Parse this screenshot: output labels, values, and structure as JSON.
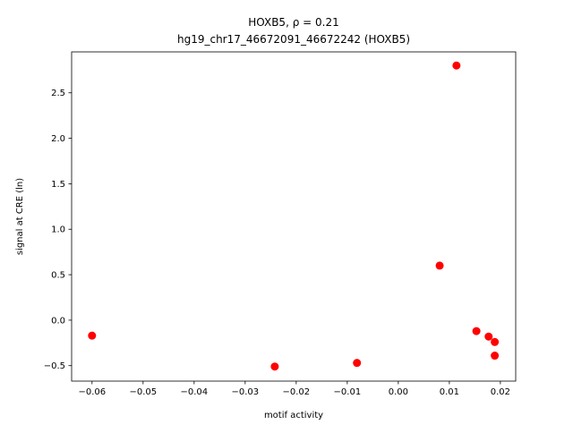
{
  "chart_data": {
    "type": "scatter",
    "title": "HOXB5, ρ = 0.21",
    "subtitle": "hg19_chr17_46672091_46672242 (HOXB5)",
    "x_label": "motif activity",
    "y_label": "signal at CRE (ln)",
    "color": "#ff0000",
    "x": [
      -0.06,
      -0.0242,
      -0.0081,
      0.0081,
      0.0114,
      0.0153,
      0.0177,
      0.0189,
      0.0189
    ],
    "values": [
      -0.17,
      -0.51,
      -0.47,
      0.6,
      2.8,
      -0.12,
      -0.18,
      -0.24,
      -0.39
    ],
    "xlim": [
      -0.064,
      0.023
    ],
    "ylim": [
      -0.67,
      2.95
    ],
    "xticks": [
      {
        "value": -0.06,
        "label": "−0.06"
      },
      {
        "value": -0.05,
        "label": "−0.05"
      },
      {
        "value": -0.04,
        "label": "−0.04"
      },
      {
        "value": -0.03,
        "label": "−0.03"
      },
      {
        "value": -0.02,
        "label": "−0.02"
      },
      {
        "value": -0.01,
        "label": "−0.01"
      },
      {
        "value": 0,
        "label": "0.00"
      },
      0.01,
      0.02
    ],
    "yticks": [
      {
        "value": -0.5,
        "label": "−0.5"
      },
      {
        "value": 0,
        "label": "0.0"
      },
      0.5,
      {
        "value": 1,
        "label": "1.0"
      },
      1.5,
      {
        "value": 2,
        "label": "2.0"
      },
      2.5
    ],
    "grid": false
  }
}
